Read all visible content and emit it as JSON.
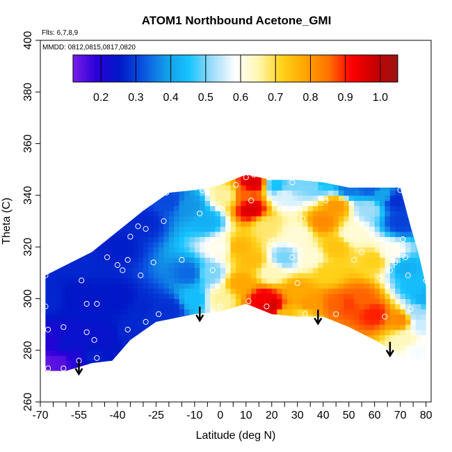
{
  "chart_data": {
    "type": "heatmap",
    "title": "ATOM1 Northbound Acetone_GMI",
    "annotations": [
      "Flts: 6,7,8,9",
      "MMDD: 0812,0815,0817,0820"
    ],
    "xlabel": "Latitude (deg N)",
    "ylabel": "Theta (C)",
    "xlim": [
      -70,
      82
    ],
    "ylim": [
      260,
      400
    ],
    "xticks": [
      -70,
      -55,
      -40,
      -25,
      -10,
      0,
      10,
      20,
      30,
      40,
      50,
      60,
      70,
      80
    ],
    "xtick_labels": [
      "-70",
      "-55",
      "-40",
      "-25",
      "-10",
      "0",
      "10",
      "20",
      "30",
      "40",
      "50",
      "60",
      "70",
      "80"
    ],
    "xminor_ticks": [
      -65,
      -60,
      -50,
      -45,
      -35,
      -30,
      -20,
      -15,
      -5,
      5,
      15,
      25,
      35,
      45,
      55,
      65,
      75
    ],
    "yticks": [
      260,
      280,
      300,
      320,
      340,
      360,
      380,
      400
    ],
    "ytick_labels": [
      "260",
      "280",
      "300",
      "320",
      "340",
      "360",
      "380",
      "400"
    ],
    "colorbar": {
      "range": [
        0.12,
        1.05
      ],
      "ticks": [
        0.2,
        0.3,
        0.4,
        0.5,
        0.6,
        0.7,
        0.8,
        0.9,
        1.0
      ],
      "tick_labels": [
        "0.2",
        "0.3",
        "0.4",
        "0.5",
        "0.6",
        "0.7",
        "0.8",
        "0.9",
        "1.0"
      ],
      "stops": [
        "#7a1fe8",
        "#2a00d8",
        "#0018c8",
        "#0a52e0",
        "#149be8",
        "#16c4ff",
        "#9edcfa",
        "#ffffff",
        "#fff7b0",
        "#ffd21a",
        "#ffa500",
        "#ff7300",
        "#ff0000",
        "#c80000",
        "#9a1414"
      ]
    },
    "envelope": {
      "top": [
        [
          -68,
          309
        ],
        [
          -60,
          313
        ],
        [
          -50,
          318
        ],
        [
          -40,
          326
        ],
        [
          -30,
          334
        ],
        [
          -20,
          341
        ],
        [
          -10,
          342
        ],
        [
          0,
          344
        ],
        [
          10,
          348
        ],
        [
          20,
          346
        ],
        [
          30,
          346
        ],
        [
          40,
          345
        ],
        [
          50,
          343
        ],
        [
          60,
          343
        ],
        [
          70,
          343
        ],
        [
          74,
          328
        ],
        [
          77,
          318
        ],
        [
          80,
          305
        ]
      ],
      "bottom": [
        [
          -68,
          272
        ],
        [
          -60,
          272
        ],
        [
          -50,
          275
        ],
        [
          -42,
          276
        ],
        [
          -35,
          284
        ],
        [
          -25,
          291
        ],
        [
          -10,
          294
        ],
        [
          0,
          295
        ],
        [
          10,
          298
        ],
        [
          20,
          294
        ],
        [
          30,
          293
        ],
        [
          40,
          293
        ],
        [
          50,
          289
        ],
        [
          60,
          284
        ],
        [
          67,
          280
        ],
        [
          72,
          276
        ],
        [
          80,
          276
        ]
      ]
    },
    "field_points": [
      [
        -68,
        275,
        0.14
      ],
      [
        -62,
        275,
        0.15
      ],
      [
        -56,
        276,
        0.2
      ],
      [
        -50,
        277,
        0.26
      ],
      [
        -60,
        283,
        0.24
      ],
      [
        -66,
        283,
        0.2
      ],
      [
        -68,
        300,
        0.27
      ],
      [
        -55,
        300,
        0.25
      ],
      [
        -40,
        300,
        0.25
      ],
      [
        -30,
        296,
        0.27
      ],
      [
        -20,
        296,
        0.28
      ],
      [
        -55,
        315,
        0.27
      ],
      [
        -40,
        320,
        0.26
      ],
      [
        -30,
        330,
        0.27
      ],
      [
        -20,
        338,
        0.31
      ],
      [
        -12,
        336,
        0.38
      ],
      [
        -12,
        310,
        0.34
      ],
      [
        -10,
        300,
        0.44
      ],
      [
        -5,
        330,
        0.42
      ],
      [
        -4,
        310,
        0.5
      ],
      [
        0,
        320,
        0.6
      ],
      [
        0,
        300,
        0.66
      ],
      [
        2,
        340,
        0.66
      ],
      [
        7,
        320,
        0.76
      ],
      [
        10,
        340,
        0.86
      ],
      [
        13,
        345,
        0.96
      ],
      [
        12,
        335,
        0.96
      ],
      [
        12,
        315,
        0.75
      ],
      [
        8,
        306,
        0.78
      ],
      [
        18,
        328,
        0.68
      ],
      [
        20,
        310,
        0.64
      ],
      [
        17,
        300,
        0.93
      ],
      [
        20,
        297,
        0.97
      ],
      [
        25,
        316,
        0.5
      ],
      [
        25,
        340,
        0.56
      ],
      [
        30,
        325,
        0.62
      ],
      [
        30,
        303,
        0.78
      ],
      [
        35,
        298,
        0.8
      ],
      [
        35,
        316,
        0.62
      ],
      [
        40,
        330,
        0.82
      ],
      [
        45,
        336,
        0.8
      ],
      [
        45,
        320,
        0.74
      ],
      [
        42,
        310,
        0.72
      ],
      [
        45,
        298,
        0.86
      ],
      [
        50,
        298,
        0.88
      ],
      [
        55,
        300,
        0.86
      ],
      [
        60,
        294,
        0.9
      ],
      [
        52,
        325,
        0.62
      ],
      [
        58,
        335,
        0.52
      ],
      [
        63,
        340,
        0.4
      ],
      [
        68,
        338,
        0.28
      ],
      [
        70,
        330,
        0.3
      ],
      [
        60,
        315,
        0.72
      ],
      [
        66,
        318,
        0.6
      ],
      [
        72,
        312,
        0.42
      ],
      [
        75,
        305,
        0.44
      ],
      [
        76,
        295,
        0.52
      ],
      [
        70,
        292,
        0.82
      ],
      [
        72,
        284,
        0.64
      ],
      [
        76,
        280,
        0.58
      ],
      [
        79,
        300,
        0.42
      ],
      [
        78,
        290,
        0.55
      ],
      [
        36,
        344,
        0.5
      ],
      [
        40,
        345,
        0.45
      ],
      [
        50,
        343,
        0.35
      ],
      [
        58,
        343,
        0.33
      ],
      [
        22,
        344,
        0.45
      ],
      [
        28,
        344,
        0.5
      ],
      [
        32,
        293,
        0.7
      ],
      [
        25,
        294,
        0.75
      ],
      [
        -25,
        294,
        0.28
      ],
      [
        -45,
        285,
        0.24
      ],
      [
        -35,
        287,
        0.27
      ]
    ],
    "sample_points": [
      [
        -68,
        309
      ],
      [
        -68,
        297
      ],
      [
        -67,
        288
      ],
      [
        -61,
        289
      ],
      [
        -67,
        273
      ],
      [
        -61,
        273
      ],
      [
        -55,
        276
      ],
      [
        -54,
        307
      ],
      [
        -52,
        298
      ],
      [
        -52,
        287
      ],
      [
        -48,
        298
      ],
      [
        -49,
        284
      ],
      [
        -48,
        277
      ],
      [
        -44,
        316
      ],
      [
        -40,
        313
      ],
      [
        -36,
        315
      ],
      [
        -38,
        311
      ],
      [
        -36,
        288
      ],
      [
        -35,
        324
      ],
      [
        -32,
        328
      ],
      [
        -29,
        327
      ],
      [
        -26,
        314
      ],
      [
        -24,
        294
      ],
      [
        -22,
        330
      ],
      [
        -21,
        341
      ],
      [
        -29,
        291
      ],
      [
        -31,
        309
      ],
      [
        -15,
        315
      ],
      [
        -13,
        343
      ],
      [
        -8,
        333
      ],
      [
        -7,
        342
      ],
      [
        -3,
        311
      ],
      [
        0,
        335
      ],
      [
        0,
        297
      ],
      [
        6,
        344
      ],
      [
        11,
        299
      ],
      [
        10,
        347
      ],
      [
        13,
        348
      ],
      [
        12,
        338
      ],
      [
        18,
        297
      ],
      [
        20,
        322
      ],
      [
        28,
        316
      ],
      [
        28,
        345
      ],
      [
        30,
        306
      ],
      [
        32,
        331
      ],
      [
        33,
        294
      ],
      [
        41,
        338
      ],
      [
        48,
        325
      ],
      [
        45,
        294
      ],
      [
        52,
        315
      ],
      [
        55,
        318
      ],
      [
        64,
        293
      ],
      [
        62,
        308
      ],
      [
        66,
        311
      ],
      [
        68,
        314
      ],
      [
        70,
        342
      ],
      [
        71,
        323
      ],
      [
        72,
        316
      ],
      [
        73,
        309
      ],
      [
        74,
        296
      ],
      [
        80,
        307
      ]
    ],
    "arrows": [
      -55,
      -8,
      38,
      66
    ]
  }
}
